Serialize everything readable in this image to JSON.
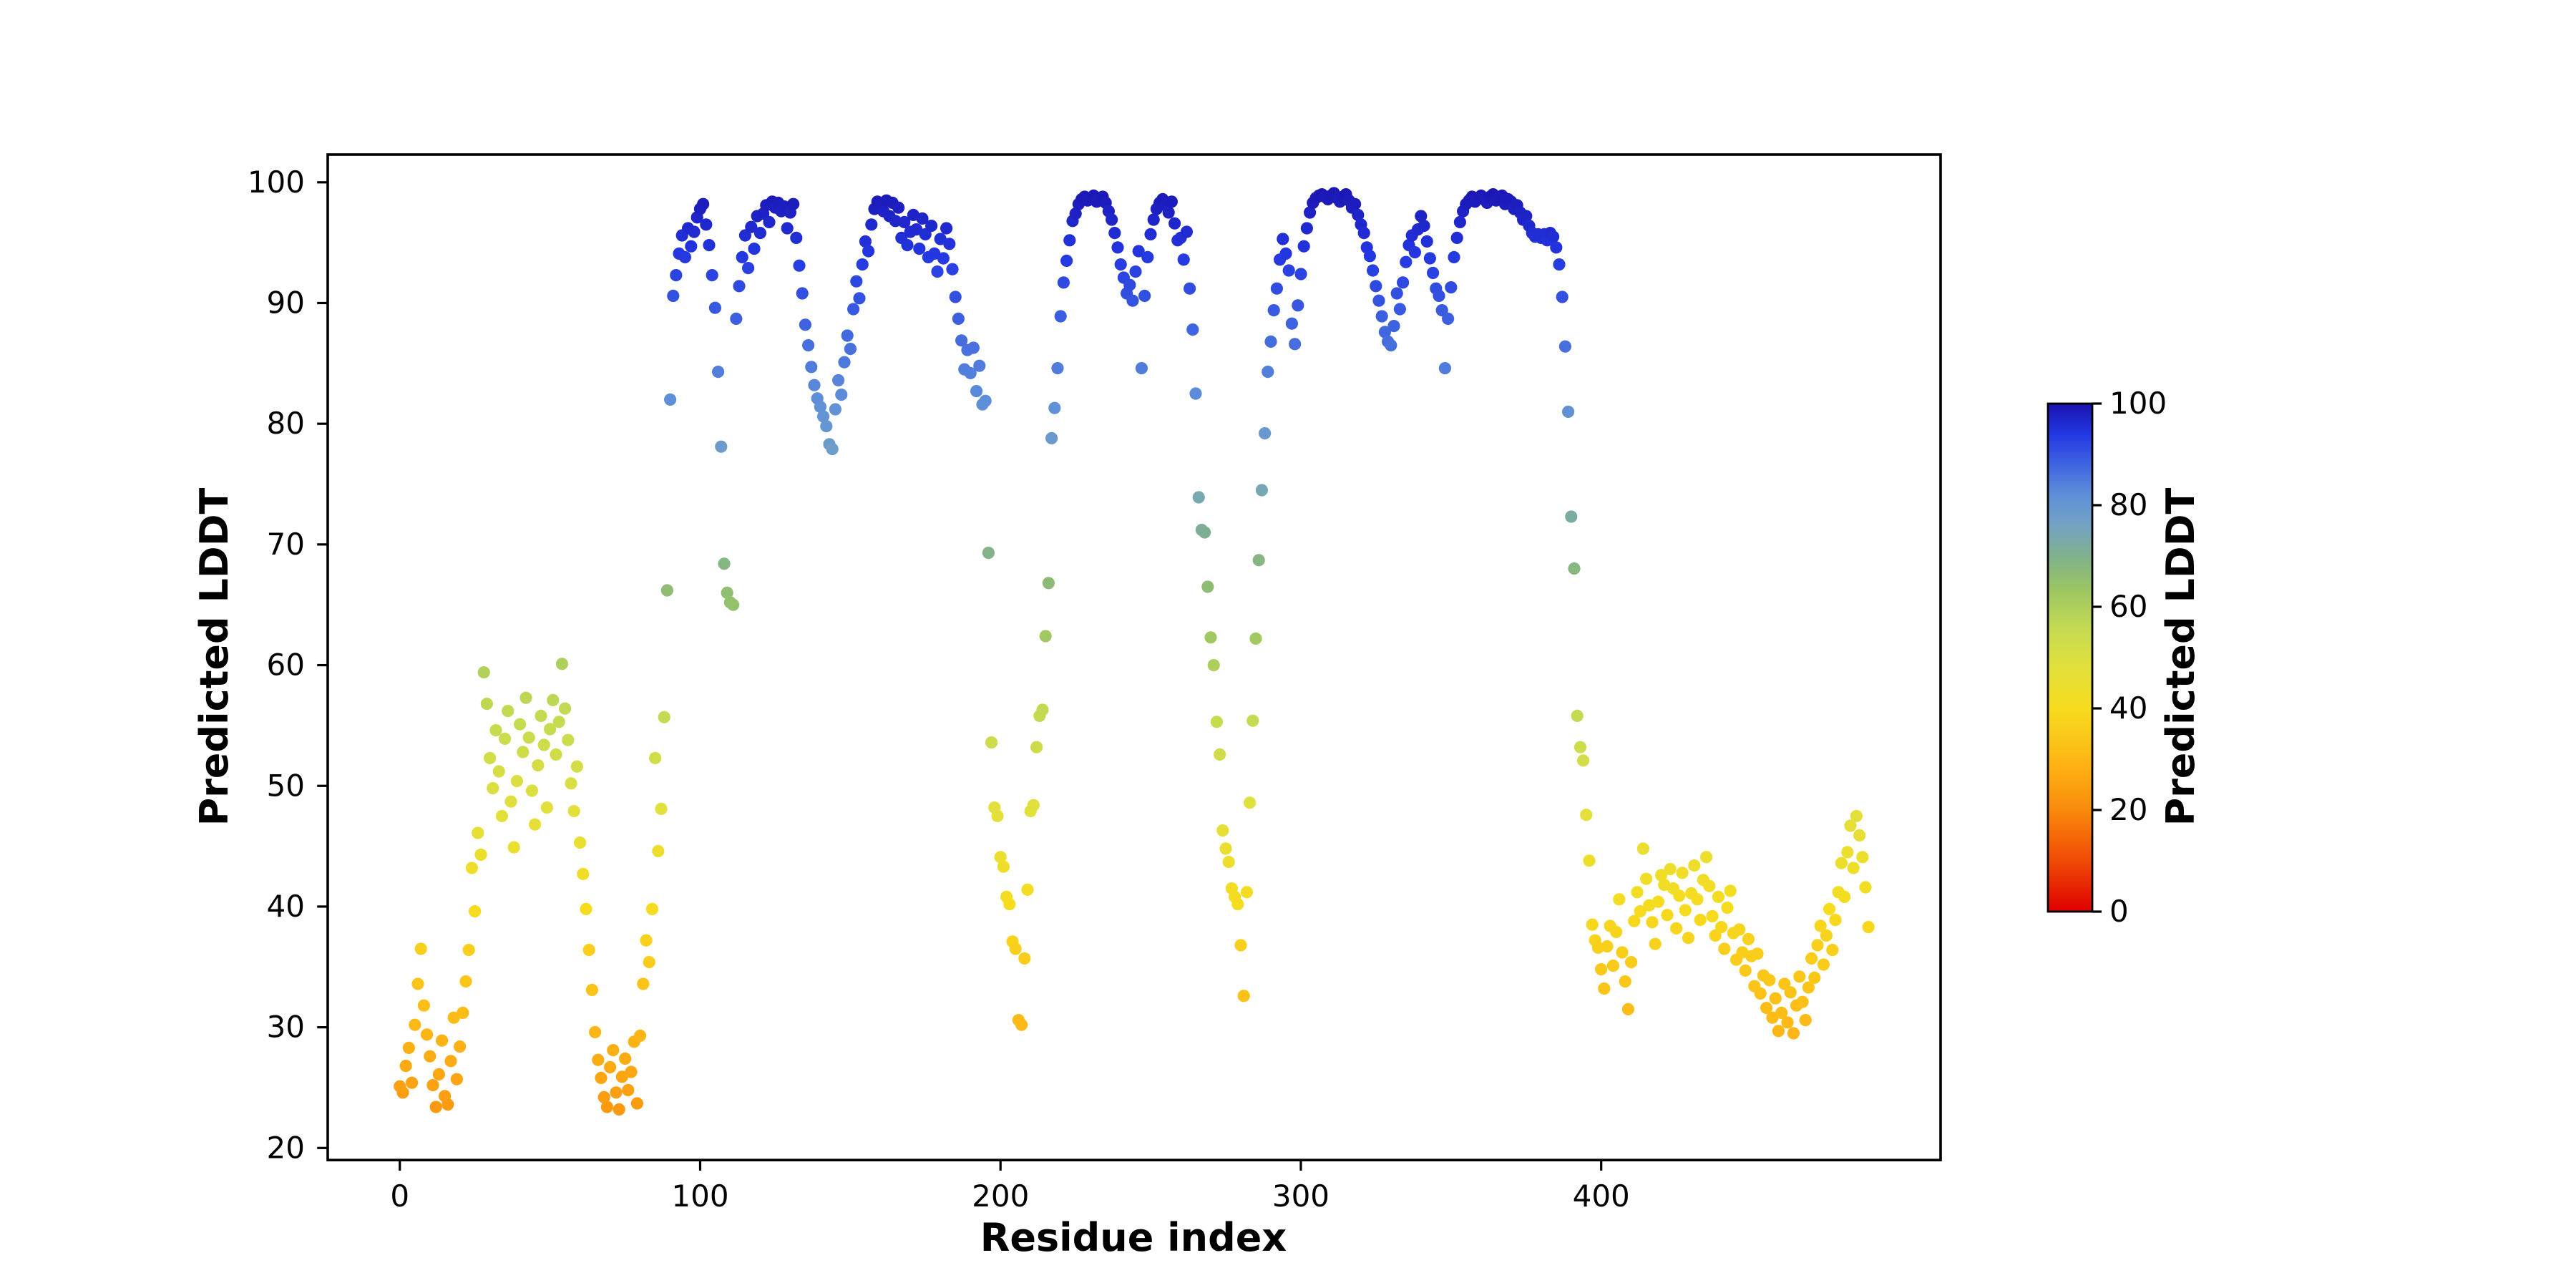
{
  "figure": {
    "xlabel": "Residue index",
    "ylabel": "Predicted LDDT",
    "background": "#ffffff",
    "x_ticks": [
      0,
      100,
      200,
      300,
      400
    ],
    "y_ticks": [
      20,
      30,
      40,
      50,
      60,
      70,
      80,
      90,
      100
    ],
    "colorbar": {
      "label": "Predicted LDDT",
      "ticks": [
        0,
        20,
        40,
        60,
        80,
        100
      ],
      "range": [
        0,
        100
      ]
    }
  },
  "chart_data": {
    "type": "scatter",
    "title": "",
    "xlabel": "Residue index",
    "ylabel": "Predicted LDDT",
    "xlim": [
      -24,
      513
    ],
    "ylim": [
      19,
      102.3
    ],
    "grid": false,
    "legend_position": "colorbar-right",
    "marker": {
      "shape": "circle",
      "radius_px": 4.3,
      "alpha": 1.0
    },
    "colormap": {
      "label": "Predicted LDDT",
      "range": [
        0,
        100
      ],
      "stops": [
        [
          0,
          "#e00000"
        ],
        [
          10,
          "#ef4a06"
        ],
        [
          20,
          "#fa8a0c"
        ],
        [
          30,
          "#fdb815"
        ],
        [
          40,
          "#f6dc1e"
        ],
        [
          48,
          "#e2e03c"
        ],
        [
          56,
          "#c3da52"
        ],
        [
          64,
          "#98c465"
        ],
        [
          70,
          "#80b18c"
        ],
        [
          76,
          "#74a3c3"
        ],
        [
          82,
          "#5e8fd9"
        ],
        [
          88,
          "#3f64e0"
        ],
        [
          94,
          "#2337e2"
        ],
        [
          100,
          "#1a12ae"
        ]
      ]
    },
    "x_encoding": {
      "start": 0,
      "step": 1
    },
    "y": [
      25.1,
      24.6,
      26.8,
      28.3,
      25.4,
      30.2,
      33.6,
      36.5,
      31.8,
      29.4,
      27.6,
      25.2,
      23.4,
      26.1,
      28.9,
      24.3,
      23.6,
      27.2,
      30.8,
      25.7,
      28.4,
      31.2,
      33.8,
      36.4,
      43.2,
      39.6,
      46.1,
      44.3,
      59.4,
      56.8,
      52.3,
      49.8,
      54.6,
      51.2,
      47.5,
      53.9,
      56.2,
      48.7,
      44.9,
      50.4,
      55.1,
      52.8,
      57.3,
      54.0,
      49.6,
      46.8,
      51.7,
      55.8,
      53.4,
      48.2,
      54.7,
      57.1,
      52.6,
      55.3,
      60.1,
      56.4,
      53.8,
      50.2,
      47.9,
      51.6,
      45.3,
      42.7,
      39.8,
      36.4,
      33.1,
      29.6,
      27.3,
      25.8,
      24.2,
      23.4,
      26.7,
      28.1,
      24.6,
      23.2,
      25.9,
      27.4,
      24.8,
      26.3,
      28.8,
      23.7,
      29.3,
      33.6,
      37.2,
      35.4,
      39.8,
      52.3,
      44.6,
      48.1,
      55.7,
      66.2,
      82.0,
      90.6,
      92.3,
      94.1,
      95.6,
      93.8,
      96.2,
      94.7,
      95.9,
      97.1,
      97.8,
      98.2,
      96.5,
      94.8,
      92.3,
      89.6,
      84.3,
      78.1,
      68.4,
      66.0,
      65.2,
      65.0,
      88.7,
      91.4,
      93.8,
      95.6,
      92.9,
      96.3,
      94.5,
      97.2,
      95.8,
      97.4,
      98.1,
      96.7,
      98.4,
      97.9,
      98.3,
      97.6,
      98.0,
      96.2,
      97.5,
      98.2,
      95.4,
      93.1,
      90.8,
      88.2,
      86.5,
      84.7,
      83.2,
      82.1,
      81.4,
      80.6,
      79.8,
      78.3,
      77.9,
      81.2,
      83.6,
      82.4,
      85.1,
      87.3,
      86.2,
      89.5,
      91.8,
      90.4,
      93.2,
      95.1,
      94.3,
      96.5,
      97.8,
      98.4,
      98.1,
      97.6,
      98.5,
      97.2,
      98.3,
      96.8,
      97.9,
      95.4,
      96.7,
      94.8,
      95.9,
      97.3,
      96.1,
      94.5,
      97.0,
      95.7,
      93.8,
      96.4,
      94.1,
      92.6,
      95.3,
      93.7,
      96.2,
      94.9,
      92.8,
      90.5,
      88.7,
      86.9,
      84.5,
      86.1,
      84.2,
      86.3,
      82.7,
      84.8,
      81.6,
      81.9,
      69.3,
      53.6,
      48.2,
      47.5,
      44.1,
      43.3,
      40.8,
      40.2,
      37.1,
      36.5,
      30.6,
      30.2,
      35.7,
      41.4,
      47.9,
      48.4,
      53.2,
      55.8,
      56.3,
      62.4,
      66.8,
      78.8,
      81.3,
      84.6,
      88.9,
      91.7,
      93.5,
      95.2,
      96.8,
      97.4,
      98.2,
      98.6,
      98.8,
      98.5,
      98.7,
      98.9,
      98.4,
      98.6,
      98.8,
      98.3,
      97.6,
      96.9,
      95.8,
      94.6,
      93.2,
      92.1,
      90.8,
      91.5,
      90.2,
      92.6,
      94.3,
      84.6,
      90.6,
      93.8,
      95.7,
      96.9,
      97.8,
      98.3,
      98.6,
      98.1,
      97.5,
      98.4,
      96.6,
      95.2,
      95.4,
      93.6,
      95.9,
      91.2,
      87.8,
      82.5,
      73.9,
      71.2,
      71.0,
      66.5,
      62.3,
      60.0,
      55.3,
      52.6,
      46.3,
      44.8,
      43.7,
      41.5,
      40.8,
      40.2,
      36.8,
      32.6,
      41.2,
      48.6,
      55.4,
      62.2,
      68.7,
      74.5,
      79.2,
      84.3,
      86.8,
      89.4,
      91.2,
      93.6,
      95.3,
      94.1,
      92.7,
      88.3,
      86.6,
      89.8,
      92.4,
      94.7,
      96.2,
      97.5,
      98.3,
      98.7,
      98.9,
      99.0,
      98.8,
      98.6,
      98.9,
      99.1,
      98.7,
      98.4,
      98.8,
      99.0,
      98.5,
      97.9,
      98.2,
      97.3,
      96.5,
      95.8,
      94.6,
      93.9,
      92.7,
      91.4,
      90.2,
      88.9,
      87.6,
      86.8,
      86.5,
      88.1,
      90.8,
      89.5,
      91.7,
      93.4,
      94.8,
      95.6,
      94.2,
      96.1,
      97.2,
      96.4,
      95.1,
      93.7,
      92.5,
      91.2,
      90.6,
      89.4,
      84.6,
      88.7,
      91.3,
      93.8,
      95.4,
      96.7,
      97.6,
      98.2,
      98.5,
      98.8,
      98.4,
      98.7,
      98.9,
      98.6,
      98.3,
      98.8,
      99.0,
      98.5,
      98.7,
      98.9,
      98.2,
      98.6,
      98.4,
      97.8,
      98.1,
      97.5,
      96.9,
      97.2,
      96.4,
      95.8,
      95.5,
      95.7,
      95.4,
      95.7,
      95.2,
      95.8,
      95.5,
      94.6,
      93.2,
      90.5,
      86.4,
      81.0,
      72.3,
      68.0,
      55.8,
      53.2,
      52.1,
      47.6,
      43.8,
      38.5,
      37.2,
      36.6,
      34.8,
      33.2,
      36.7,
      38.4,
      35.1,
      37.9,
      40.6,
      36.2,
      33.8,
      31.5,
      35.4,
      38.8,
      41.2,
      39.6,
      44.8,
      42.3,
      40.1,
      38.7,
      36.9,
      40.4,
      42.6,
      41.8,
      39.3,
      43.1,
      41.5,
      38.2,
      40.9,
      42.8,
      39.7,
      37.4,
      41.1,
      43.4,
      40.6,
      38.9,
      42.2,
      44.1,
      41.7,
      39.2,
      37.6,
      40.8,
      38.3,
      36.5,
      39.9,
      41.3,
      37.8,
      35.6,
      38.1,
      36.2,
      34.7,
      37.3,
      35.9,
      33.4,
      36.1,
      32.8,
      34.3,
      31.6,
      33.9,
      30.8,
      32.4,
      29.7,
      31.2,
      33.6,
      30.4,
      32.9,
      29.5,
      31.8,
      34.2,
      32.1,
      30.6,
      33.3,
      35.7,
      34.1,
      36.8,
      38.4,
      35.2,
      37.6,
      39.8,
      36.4,
      38.9,
      41.2,
      43.6,
      40.8,
      44.5,
      46.7,
      43.2,
      47.5,
      45.9,
      44.1,
      41.6,
      38.3
    ]
  }
}
